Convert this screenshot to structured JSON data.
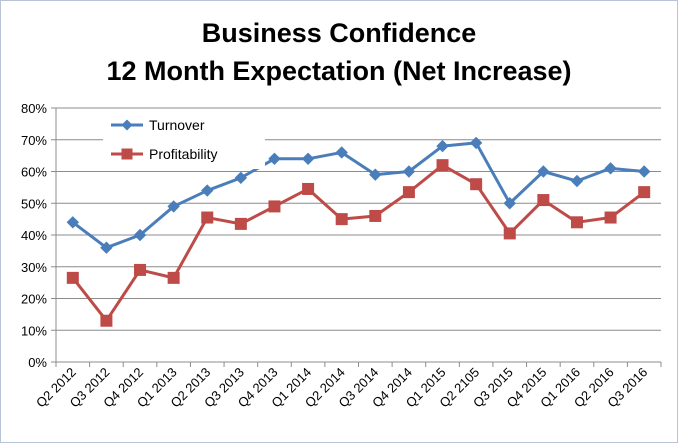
{
  "chart_data": {
    "type": "line",
    "title": "Business Confidence",
    "subtitle": "12 Month Expectation (Net Increase)",
    "xlabel": "",
    "ylabel": "",
    "categories": [
      "Q2 2012",
      "Q3 2012",
      "Q4 2012",
      "Q1 2013",
      "Q2 2013",
      "Q3 2013",
      "Q4 2013",
      "Q1 2014",
      "Q2 2014",
      "Q3 2014",
      "Q4 2014",
      "Q1 2015",
      "Q2 2105",
      "Q3 2015",
      "Q4 2015",
      "Q1 2016",
      "Q2 2016",
      "Q3 2016"
    ],
    "series": [
      {
        "name": "Turnover",
        "color": "#4a7ebb",
        "marker": "diamond",
        "values": [
          0.44,
          0.36,
          0.4,
          0.49,
          0.54,
          0.58,
          0.64,
          0.64,
          0.66,
          0.59,
          0.6,
          0.68,
          0.69,
          0.5,
          0.6,
          0.57,
          0.61,
          0.6
        ]
      },
      {
        "name": "Profitability",
        "color": "#be4b48",
        "marker": "square",
        "values": [
          0.265,
          0.13,
          0.29,
          0.265,
          0.455,
          0.435,
          0.49,
          0.545,
          0.45,
          0.46,
          0.535,
          0.62,
          0.56,
          0.405,
          0.51,
          0.44,
          0.455,
          0.535
        ]
      }
    ],
    "ylim": [
      0,
      0.8
    ],
    "yticks": [
      "0%",
      "10%",
      "20%",
      "30%",
      "40%",
      "50%",
      "60%",
      "70%",
      "80%"
    ],
    "grid": true,
    "legend_position": "top-left inside"
  }
}
